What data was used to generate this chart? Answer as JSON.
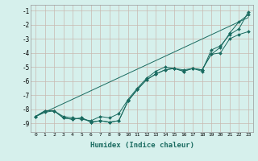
{
  "xlabel": "Humidex (Indice chaleur)",
  "background_color": "#d6f0ec",
  "grid_color": "#c8b8b0",
  "line_color": "#1a6b60",
  "xlim": [
    -0.5,
    23.5
  ],
  "ylim": [
    -9.6,
    -0.6
  ],
  "yticks": [
    -9,
    -8,
    -7,
    -6,
    -5,
    -4,
    -3,
    -2,
    -1
  ],
  "xticks": [
    0,
    1,
    2,
    3,
    4,
    5,
    6,
    7,
    8,
    9,
    10,
    11,
    12,
    13,
    14,
    15,
    16,
    17,
    18,
    19,
    20,
    21,
    22,
    23
  ],
  "series": [
    {
      "x": [
        0,
        1,
        2,
        3,
        4,
        5,
        6,
        7,
        8,
        9,
        10,
        11,
        12,
        13,
        14,
        15,
        16,
        17,
        18,
        19,
        20,
        21,
        22,
        23
      ],
      "y": [
        -8.5,
        -8.2,
        -8.1,
        -8.5,
        -8.6,
        -8.7,
        -8.8,
        -8.5,
        -8.6,
        -8.3,
        -7.3,
        -6.5,
        -5.8,
        -5.3,
        -5.0,
        -5.1,
        -5.2,
        -5.1,
        -5.3,
        -3.8,
        -3.5,
        -2.7,
        -2.3,
        -1.1
      ],
      "marker": true
    },
    {
      "x": [
        0,
        1,
        2,
        3,
        4,
        5,
        6,
        7,
        8,
        9,
        10,
        11,
        12,
        13,
        14,
        15,
        16,
        17,
        18,
        19,
        20,
        21,
        22,
        23
      ],
      "y": [
        -8.5,
        -8.1,
        -8.1,
        -8.6,
        -8.7,
        -8.6,
        -8.9,
        -8.8,
        -8.9,
        -8.8,
        -7.4,
        -6.6,
        -5.9,
        -5.5,
        -5.2,
        -5.1,
        -5.3,
        -5.1,
        -5.2,
        -4.1,
        -4.0,
        -3.0,
        -2.7,
        -2.5
      ],
      "marker": true
    },
    {
      "x": [
        0,
        1,
        2,
        3,
        4,
        5,
        6,
        7,
        8,
        9,
        10,
        11,
        12,
        13,
        14,
        15,
        16,
        17,
        18,
        19,
        20,
        21,
        22,
        23
      ],
      "y": [
        -8.5,
        -8.1,
        -8.1,
        -8.6,
        -8.7,
        -8.6,
        -8.9,
        -8.8,
        -8.9,
        -8.8,
        -7.4,
        -6.6,
        -5.9,
        -5.5,
        -5.2,
        -5.1,
        -5.3,
        -5.1,
        -5.2,
        -4.1,
        -3.6,
        -2.6,
        -1.8,
        -1.3
      ],
      "marker": true
    },
    {
      "x": [
        0,
        23
      ],
      "y": [
        -8.5,
        -1.5
      ],
      "marker": false
    }
  ]
}
